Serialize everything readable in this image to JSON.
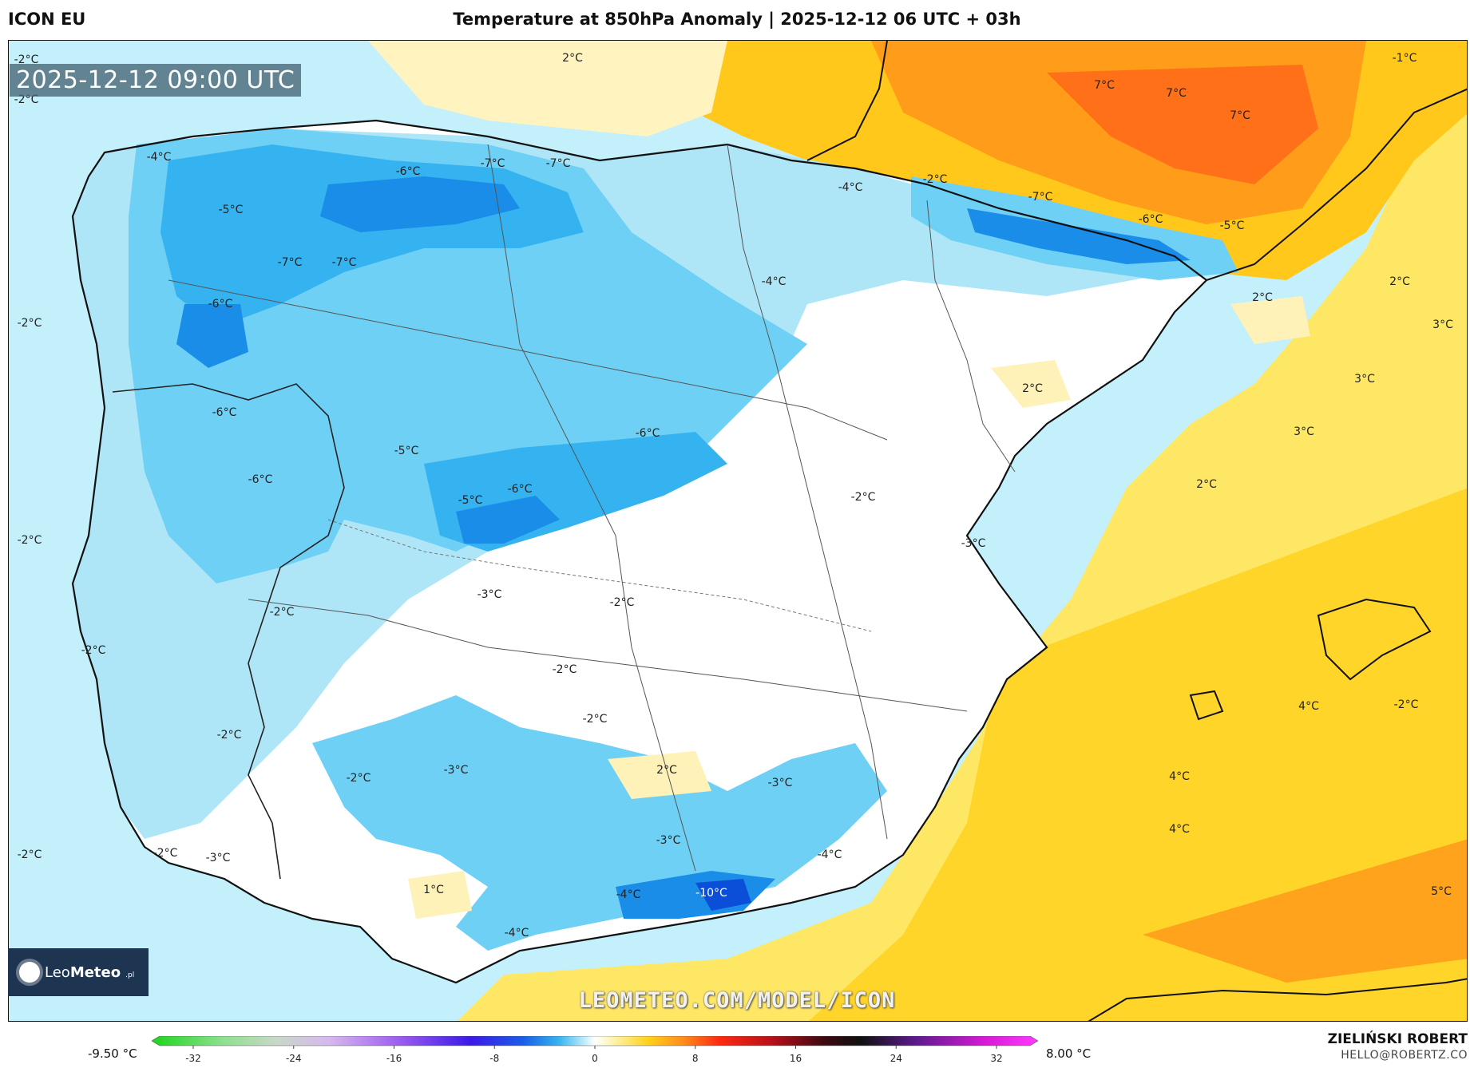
{
  "header": {
    "model": "ICON EU",
    "title": "Temperature at 850hPa Anomaly | 2025-12-12 06 UTC + 03h"
  },
  "valid_time": "2025-12-12 09:00 UTC",
  "watermark": "LEOMETEO.COM/MODEL/ICON",
  "logo": {
    "text_light": "Leo",
    "text_bold": "Meteo",
    "suffix": ".pl"
  },
  "colorbar": {
    "min_label": "-9.50 °C",
    "max_label": "8.00 °C",
    "ticks": [
      "-32",
      "-24",
      "-16",
      "-8",
      "0",
      "8",
      "16",
      "24",
      "32"
    ]
  },
  "credit": {
    "author": "ZIELIŃSKI ROBERT",
    "email": "HELLO@ROBERTZ.CO"
  },
  "map_labels": [
    "-2°C",
    "-2°C",
    "2°C",
    "-1°C",
    "7°C",
    "7°C",
    "7°C",
    "-4°C",
    "-6°C",
    "-7°C",
    "-7°C",
    "-4°C",
    "-2°C",
    "-7°C",
    "-5°C",
    "-6°C",
    "-5°C",
    "-7°C",
    "-7°C",
    "-4°C",
    "2°C",
    "2°C",
    "-6°C",
    "-2°C",
    "3°C",
    "3°C",
    "2°C",
    "-6°C",
    "-6°C",
    "-5°C",
    "3°C",
    "-6°C",
    "-6°C",
    "-5°C",
    "2°C",
    "-2°C",
    "-2°C",
    "-3°C",
    "-3°C",
    "-2°C",
    "-2°C",
    "-2°C",
    "-2°C",
    "-2°C",
    "4°C",
    "-2°C",
    "-2°C",
    "4°C",
    "-3°C",
    "2°C",
    "-2°C",
    "-3°C",
    "4°C",
    "-4°C",
    "-2°C",
    "-3°C",
    "-2°C",
    "-3°C",
    "1°C",
    "-4°C",
    "-10°C",
    "-4°C",
    "5°C"
  ],
  "colors": {
    "ocean_cold": "#bfeefa",
    "warm_light": "#fff2b8",
    "warm_yellow": "#ffe066",
    "warm_gold": "#ffc81a",
    "warm_orange": "#ff9d1a",
    "warm_red_orange": "#ff6a14"
  }
}
